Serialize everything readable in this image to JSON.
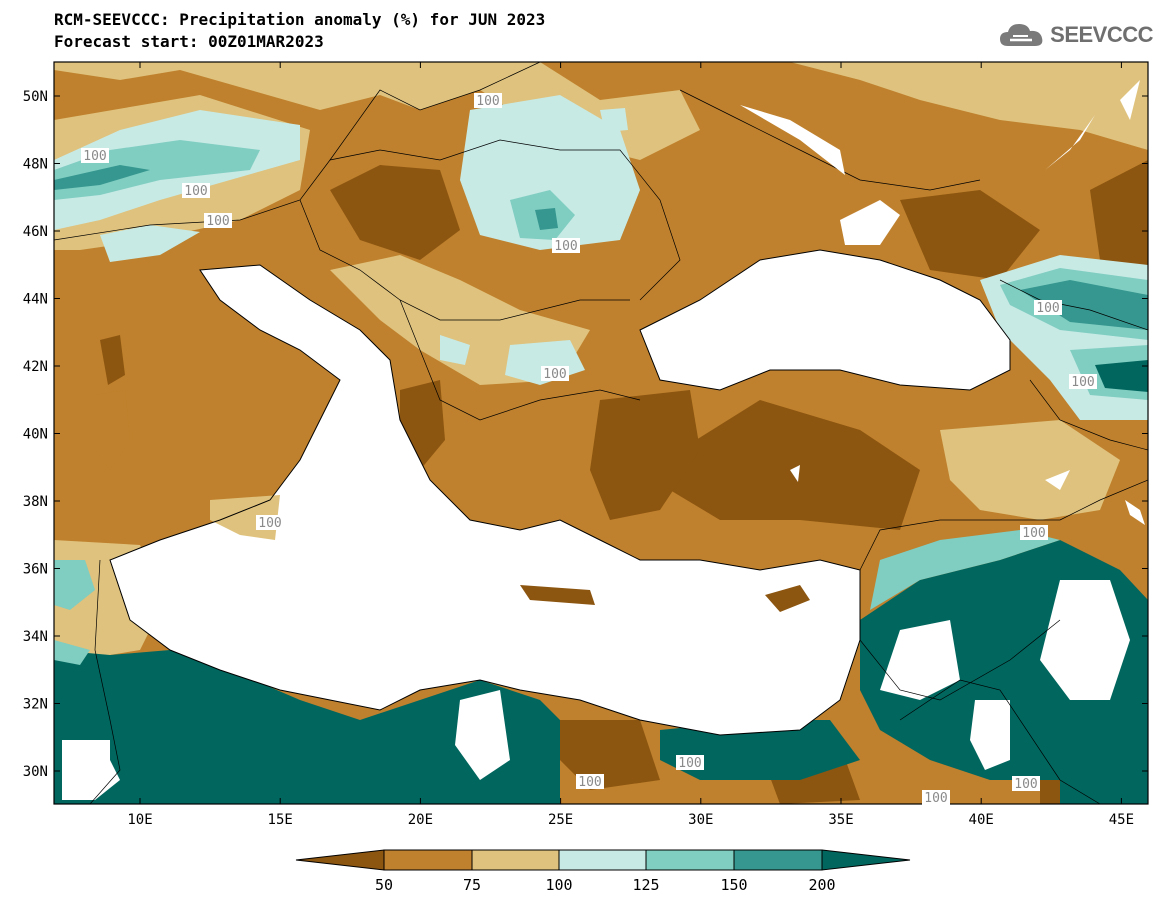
{
  "header": {
    "title": "RCM-SEEVCCC: Precipitation anomaly (%) for JUN 2023",
    "subtitle": "Forecast start: 00Z01MAR2023",
    "logo_text": "SEEVCCC"
  },
  "map": {
    "lat_labels": [
      "50N",
      "48N",
      "46N",
      "44N",
      "42N",
      "40N",
      "38N",
      "36N",
      "34N",
      "32N",
      "30N"
    ],
    "lon_labels": [
      "10E",
      "15E",
      "20E",
      "25E",
      "30E",
      "35E",
      "40E",
      "45E"
    ],
    "contour_label": "100"
  },
  "legend": {
    "tick_labels": [
      "50",
      "75",
      "100",
      "125",
      "150",
      "200"
    ],
    "colors": [
      "#8c5510",
      "#bf812d",
      "#dfc27d",
      "#c7eae5",
      "#80cdc1",
      "#35978f",
      "#01665e"
    ]
  }
}
